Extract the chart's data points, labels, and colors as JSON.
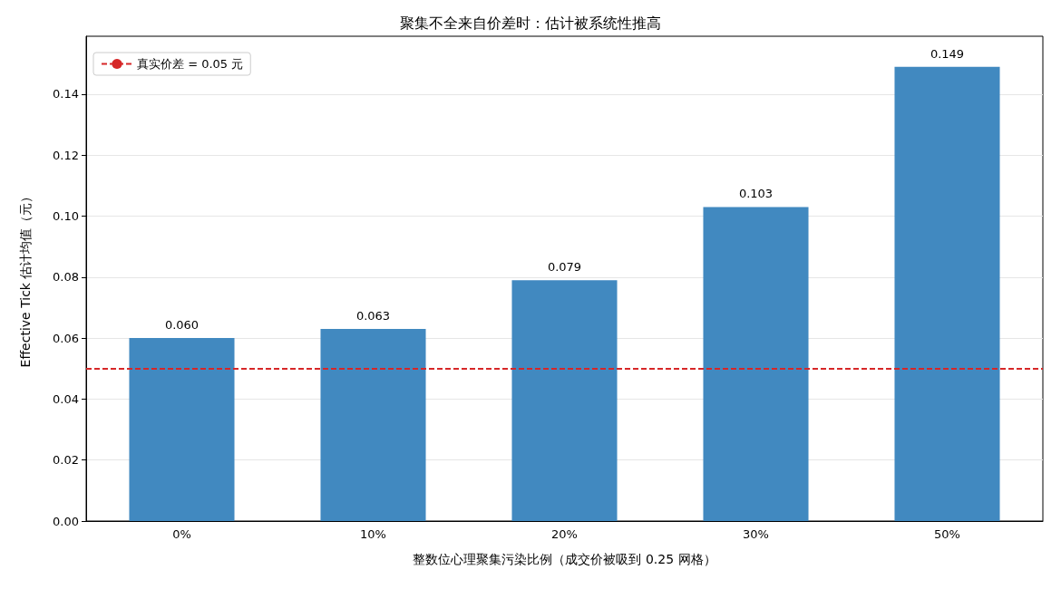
{
  "chart_data": {
    "type": "bar",
    "title": "聚集不全来自价差时：估计被系统性推高",
    "xlabel": "整数位心理聚集污染比例（成交价被吸到 0.25 网格）",
    "ylabel": "Effective Tick 估计均值（元）",
    "categories": [
      "0%",
      "10%",
      "20%",
      "30%",
      "50%"
    ],
    "values": [
      0.06,
      0.063,
      0.079,
      0.103,
      0.149
    ],
    "value_labels": [
      "0.060",
      "0.063",
      "0.079",
      "0.103",
      "0.149"
    ],
    "color": "#4189c0",
    "ylim": [
      0,
      0.159
    ],
    "yticks": [
      {
        "value": 0,
        "label": "0.00"
      },
      {
        "value": 0.02,
        "label": "0.02"
      },
      {
        "value": 0.04,
        "label": "0.04"
      },
      {
        "value": 0.06,
        "label": "0.06"
      },
      {
        "value": 0.08,
        "label": "0.08"
      },
      {
        "value": 0.1,
        "label": "0.10"
      },
      {
        "value": 0.12,
        "label": "0.12"
      },
      {
        "value": 0.14,
        "label": "0.14"
      }
    ],
    "ref_lines": [
      {
        "axis": "y",
        "value": 0.05,
        "label": "真实价差 = 0.05 元",
        "color": "#d62728",
        "line_style": "dashed"
      }
    ],
    "grid": "y",
    "legend": "top left"
  }
}
